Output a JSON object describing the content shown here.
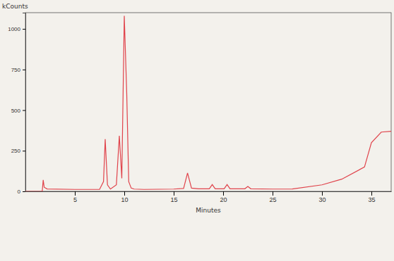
{
  "chart_data": {
    "type": "line",
    "ylabel": "kCounts",
    "xlabel": "Minutes",
    "x": [
      0,
      1.7,
      1.8,
      1.9,
      2.2,
      5,
      7.5,
      7.9,
      8.07,
      8.3,
      8.6,
      9.2,
      9.5,
      9.75,
      10.0,
      10.25,
      10.45,
      10.7,
      11.0,
      12,
      15,
      16.0,
      16.4,
      16.8,
      17.5,
      18.6,
      18.9,
      19.2,
      20.1,
      20.4,
      20.7,
      22.2,
      22.5,
      22.8,
      25,
      27,
      30,
      32,
      34.3,
      35,
      36,
      37
    ],
    "values": [
      0,
      0,
      70,
      25,
      15,
      12,
      12,
      60,
      321,
      40,
      14,
      40,
      342,
      80,
      1080,
      600,
      60,
      20,
      14,
      12,
      14,
      18,
      113,
      20,
      16,
      16,
      42,
      16,
      16,
      42,
      16,
      16,
      30,
      16,
      14,
      15,
      40,
      75,
      150,
      300,
      365,
      370
    ],
    "color": "#e0434b",
    "xlim": [
      0,
      37
    ],
    "xticks": [
      5,
      10,
      15,
      20,
      25,
      30,
      35
    ],
    "ylim": [
      0,
      1100
    ],
    "yticks": [
      0,
      250,
      500,
      750,
      1000
    ],
    "grid": false
  }
}
